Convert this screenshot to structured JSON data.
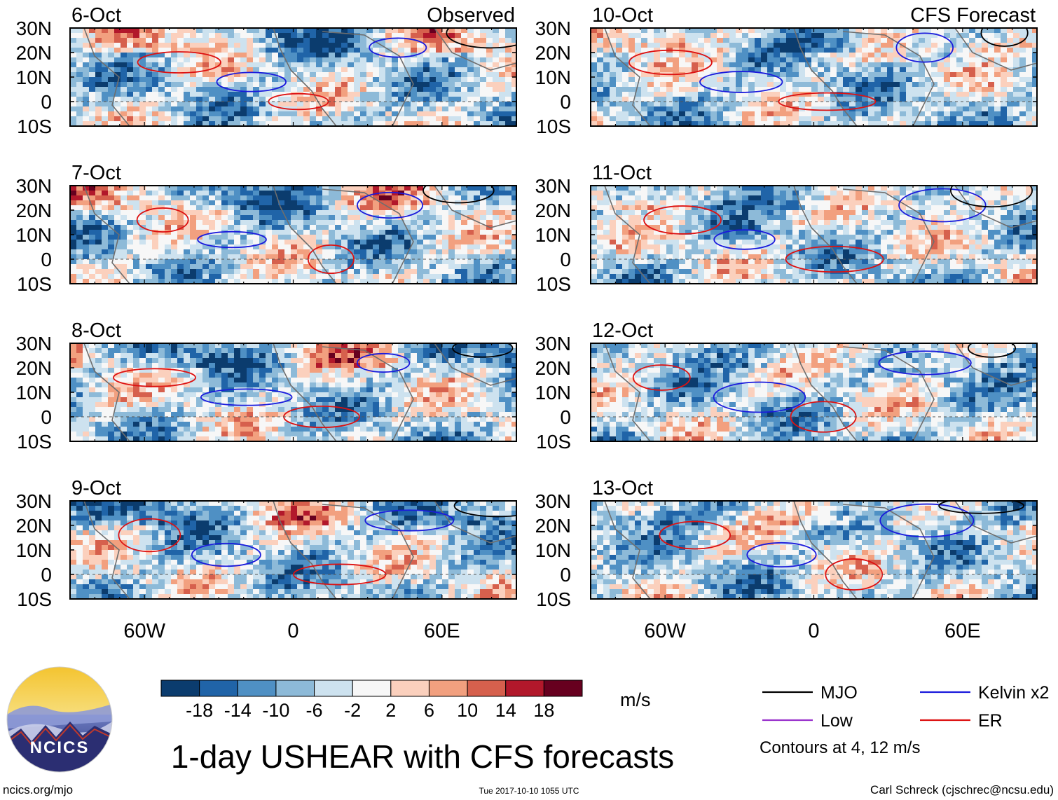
{
  "chart_data": {
    "type": "heatmap",
    "title": "1-day USHEAR with CFS forecasts",
    "left_header": "Observed",
    "right_header": "CFS Forecast",
    "panels_left": [
      {
        "date": "6-Oct"
      },
      {
        "date": "7-Oct"
      },
      {
        "date": "8-Oct"
      },
      {
        "date": "9-Oct"
      }
    ],
    "panels_right": [
      {
        "date": "10-Oct"
      },
      {
        "date": "11-Oct"
      },
      {
        "date": "12-Oct"
      },
      {
        "date": "13-Oct"
      }
    ],
    "lat_ticks": [
      "30N",
      "20N",
      "10N",
      "0",
      "10S"
    ],
    "lat_values": [
      30,
      20,
      10,
      0,
      -10
    ],
    "lon_ticks": [
      "60W",
      "0",
      "60E"
    ],
    "lon_values": [
      -60,
      0,
      60
    ],
    "lon_range": [
      -90,
      90
    ],
    "lat_range": [
      -10,
      30
    ],
    "colorbar": {
      "unit": "m/s",
      "tick_labels": [
        "-18",
        "-14",
        "-10",
        "-6",
        "-2",
        "2",
        "6",
        "10",
        "14",
        "18"
      ],
      "colors": [
        "#0b3c6e",
        "#2064a8",
        "#4f90c4",
        "#8dbad8",
        "#cde2ef",
        "#f7f7f7",
        "#fbd0bd",
        "#f2a07f",
        "#d6604d",
        "#b2182b",
        "#67001f"
      ]
    },
    "legend": [
      {
        "label": "MJO",
        "color": "#000000"
      },
      {
        "label": "Kelvin x2",
        "color": "#1a1adc"
      },
      {
        "label": "Low",
        "color": "#9932cc"
      },
      {
        "label": "ER",
        "color": "#dd1111"
      }
    ],
    "contours_note": "Contours at 4, 12 m/s"
  },
  "footer": {
    "logo_text": "NCICS",
    "url": "ncics.org/mjo",
    "timestamp": "Tue 2017-10-10 1055 UTC",
    "credit": "Carl Schreck (cjschrec@ncsu.edu)"
  }
}
